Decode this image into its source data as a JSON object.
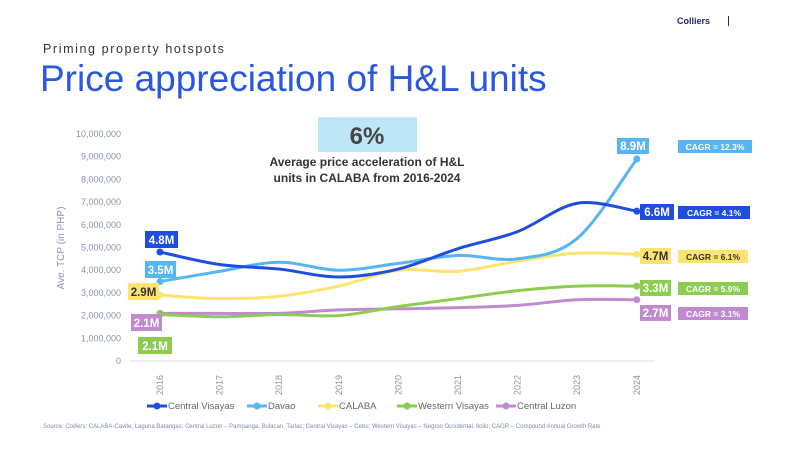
{
  "header": {
    "brand": "Colliers",
    "kicker": "Priming property hotspots",
    "title": "Price appreciation of H&L units"
  },
  "callout": {
    "value": "6%",
    "line1": "Average price acceleration of H&L",
    "line2": "units in CALABA from 2016-2024",
    "bg": "#bfe6f6"
  },
  "source": {
    "label": "Source: Colliers;",
    "text": " CALABA-Cavite, Laguna Batangas; Central Luzon – Pampanga, Bulacan, Tarlac; Central Visayas – Cebu; Western Visayas – Negros Occidental, Iloilo; CAGR – Compound Annual Growth Rate"
  },
  "chart_data": {
    "type": "line",
    "title": "Price appreciation of H&L units",
    "xlabel": "",
    "ylabel": "Ave. TCP (in PHP)",
    "ylim": [
      0,
      10000000
    ],
    "yticks": [
      0,
      1000000,
      2000000,
      3000000,
      4000000,
      5000000,
      6000000,
      7000000,
      8000000,
      9000000,
      10000000
    ],
    "ytick_labels": [
      "0",
      "1,000,000",
      "2,000,000",
      "3,000,000",
      "4,000,000",
      "5,000,000",
      "6,000,000",
      "7,000,000",
      "8,000,000",
      "9,000,000",
      "10,000,000"
    ],
    "categories": [
      "2016",
      "2017",
      "2018",
      "2019",
      "2020",
      "2021",
      "2022",
      "2023",
      "2024"
    ],
    "legend_position": "bottom",
    "series": [
      {
        "name": "Central Visayas",
        "color": "#1f4de0",
        "label_text": "#ffffff",
        "values": [
          4800000,
          4250000,
          4050000,
          3700000,
          4050000,
          4950000,
          5700000,
          6950000,
          6600000
        ],
        "start_label": "4.8M",
        "end_label": "6.6M",
        "cagr": "CAGR = 4.1%"
      },
      {
        "name": "Davao",
        "color": "#55b5f5",
        "label_text": "#ffffff",
        "values": [
          3500000,
          3950000,
          4350000,
          4000000,
          4300000,
          4650000,
          4500000,
          5400000,
          8900000
        ],
        "start_label": "3.5M",
        "end_label": "8.9M",
        "cagr": "CAGR = 12.3%"
      },
      {
        "name": "CALABA",
        "color": "#fde46e",
        "label_text": "#333333",
        "values": [
          2900000,
          2750000,
          2850000,
          3300000,
          4000000,
          3950000,
          4400000,
          4750000,
          4700000
        ],
        "start_label": "2.9M",
        "end_label": "4.7M",
        "cagr": "CAGR = 6.1%"
      },
      {
        "name": "Western Visayas",
        "color": "#8ccc4e",
        "label_text": "#ffffff",
        "values": [
          2050000,
          1950000,
          2050000,
          2000000,
          2400000,
          2750000,
          3100000,
          3300000,
          3300000
        ],
        "start_label": "2.1M",
        "end_label": "3.3M",
        "cagr": "CAGR = 5.9%"
      },
      {
        "name": "Central Luzon",
        "color": "#c08ad0",
        "label_text": "#ffffff",
        "values": [
          2100000,
          2100000,
          2100000,
          2250000,
          2300000,
          2350000,
          2450000,
          2700000,
          2700000
        ],
        "start_label": "2.1M",
        "end_label": "2.7M",
        "cagr": "CAGR = 3.1%"
      }
    ]
  }
}
